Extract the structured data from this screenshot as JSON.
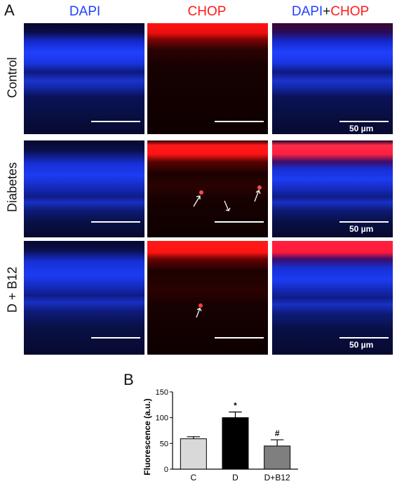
{
  "panelA": {
    "letter": "A",
    "columns": [
      {
        "label": "DAPI",
        "color": "#1f3fff"
      },
      {
        "label": "CHOP",
        "color": "#ff1a1a"
      }
    ],
    "merge_header": {
      "part1": "DAPI",
      "plus": "+",
      "part2": "CHOP"
    },
    "rows": [
      "Control",
      "Diabetes",
      "D + B12"
    ],
    "scale_label": "50 µm"
  },
  "panelB": {
    "letter": "B"
  },
  "chart_data": {
    "type": "bar",
    "ylabel": "Fluorescence (a.u.)",
    "xlabel": "",
    "categories": [
      "C",
      "D",
      "D+B12"
    ],
    "values": [
      59,
      100,
      45
    ],
    "errors": [
      4,
      11,
      12
    ],
    "annotations": [
      "",
      "*",
      "#"
    ],
    "colors": [
      "#d9d9d9",
      "#000000",
      "#7f7f7f"
    ],
    "ylim": [
      0,
      150
    ],
    "yticks": [
      0,
      50,
      100,
      150
    ]
  }
}
